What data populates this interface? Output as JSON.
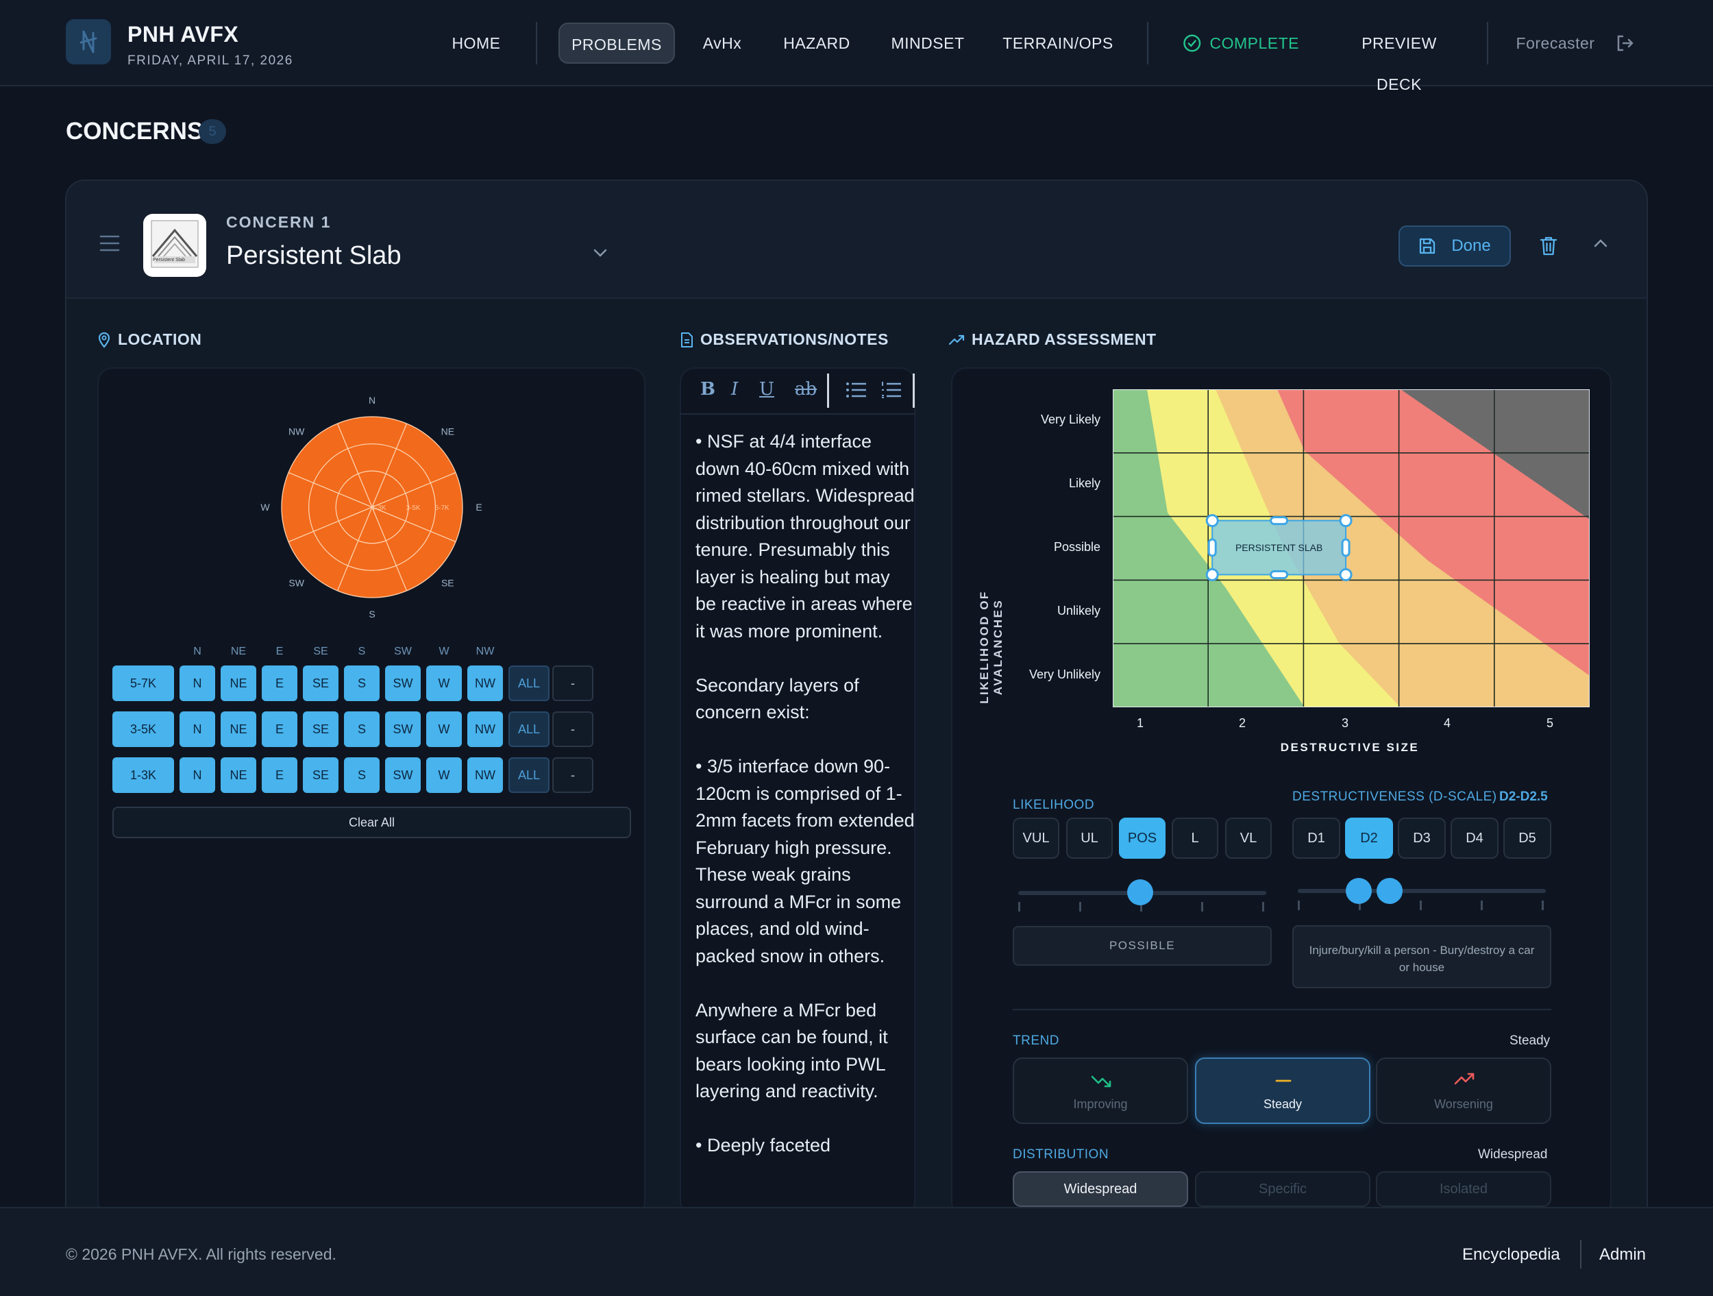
{
  "brand": {
    "name": "PNH AVFX",
    "date": "FRIDAY, APRIL 17, 2026"
  },
  "nav": {
    "items": [
      "HOME",
      "PROBLEMS",
      "AvHx",
      "HAZARD",
      "MINDSET",
      "TERRAIN/OPS"
    ],
    "active": "PROBLEMS",
    "complete": "COMPLETE",
    "preview": "PREVIEW DECK",
    "user": "Forecaster"
  },
  "page": {
    "title": "CONCERNS",
    "count": "5"
  },
  "concern": {
    "number_label": "CONCERN 1",
    "name": "Persistent Slab",
    "thumb_caption": "Persistent Slab",
    "done_label": "Done"
  },
  "location": {
    "label": "LOCATION",
    "compass": [
      "N",
      "NE",
      "E",
      "SE",
      "S",
      "SW",
      "W",
      "NW"
    ],
    "ring_labels": [
      "5-7K",
      "3-5K",
      "1-3K"
    ],
    "columns": [
      "N",
      "NE",
      "E",
      "SE",
      "S",
      "SW",
      "W",
      "NW"
    ],
    "rows": [
      {
        "band": "5-7K",
        "cells": [
          "N",
          "NE",
          "E",
          "SE",
          "S",
          "SW",
          "W",
          "NW"
        ],
        "all": "ALL",
        "none": "-"
      },
      {
        "band": "3-5K",
        "cells": [
          "N",
          "NE",
          "E",
          "SE",
          "S",
          "SW",
          "W",
          "NW"
        ],
        "all": "ALL",
        "none": "-"
      },
      {
        "band": "1-3K",
        "cells": [
          "N",
          "NE",
          "E",
          "SE",
          "S",
          "SW",
          "W",
          "NW"
        ],
        "all": "ALL",
        "none": "-"
      }
    ],
    "clear_all": "Clear All",
    "fill_color": "#f26a1b"
  },
  "notes": {
    "label": "OBSERVATIONS/NOTES",
    "toolbar": [
      "B",
      "I",
      "U",
      "ab"
    ],
    "text": "• NSF at 4/4 interface down 40-60cm mixed with rimed stellars. Widespread distribution throughout our tenure. Presumably this layer is healing but may be reactive in areas where it was more prominent.\n\nSecondary layers of concern exist:\n\n• 3/5 interface down 90-120cm is comprised of 1-2mm facets from extended February high pressure. These weak grains surround a MFcr in some places, and old wind-packed snow in others.\n\nAnywhere a MFcr bed surface can be found, it bears looking into PWL layering and reactivity.\n\n• Deeply faceted"
  },
  "hazard": {
    "label": "HAZARD ASSESSMENT",
    "chart_data": {
      "type": "heatmap",
      "ylabel": "LIKELIHOOD OF AVALANCHES",
      "xlabel": "DESTRUCTIVE SIZE",
      "y_categories": [
        "Very Likely",
        "Likely",
        "Possible",
        "Unlikely",
        "Very Unlikely"
      ],
      "x_ticks": [
        "1",
        "2",
        "3",
        "4",
        "5"
      ],
      "problem_box": {
        "label": "PERSISTENT SLAB",
        "likelihood": "Possible",
        "size_range": [
          2,
          2.5
        ]
      },
      "zone_colors": [
        "#8bc98a",
        "#f4f07f",
        "#f2c97e",
        "#f07f7a",
        "#6b6b6b"
      ]
    },
    "likelihood": {
      "label": "LIKELIHOOD",
      "options": [
        "VUL",
        "UL",
        "POS",
        "L",
        "VL"
      ],
      "selected": "POS",
      "readout": "POSSIBLE",
      "level": 0.5
    },
    "destructiveness": {
      "label": "DESTRUCTIVENESS (D-SCALE)",
      "value": "D2-D2.5",
      "options": [
        "D1",
        "D2",
        "D3",
        "D4",
        "D5"
      ],
      "selected": "D2",
      "readout": "Injure/bury/kill a person - Bury/destroy a car or house",
      "range": [
        0.25,
        0.375
      ]
    },
    "trend": {
      "label": "TREND",
      "value": "Steady",
      "options": [
        {
          "label": "Improving",
          "icon": "trending-down-icon"
        },
        {
          "label": "Steady",
          "icon": "minus-icon"
        },
        {
          "label": "Worsening",
          "icon": "trending-up-icon"
        }
      ]
    },
    "distribution": {
      "label": "DISTRIBUTION",
      "value": "Widespread",
      "options": [
        "Widespread",
        "Specific",
        "Isolated"
      ]
    }
  },
  "footer": {
    "copyright": "© 2026 PNH AVFX. All rights reserved.",
    "links": [
      "Encyclopedia",
      "Admin"
    ]
  }
}
